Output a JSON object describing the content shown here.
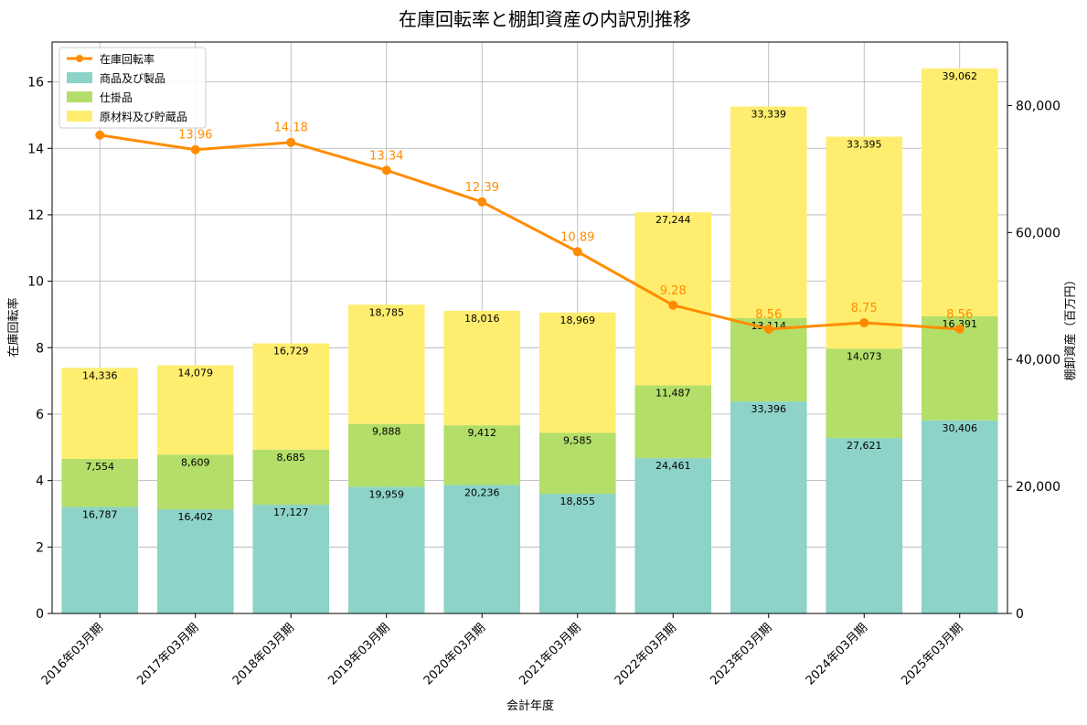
{
  "chart_data": {
    "type": "bar",
    "title": "在庫回転率と棚卸資産の内訳別推移",
    "xlabel": "会計年度",
    "ylabel_left": "在庫回転率",
    "ylabel_right": "棚卸資産（百万円）",
    "categories": [
      "2016年03月期",
      "2017年03月期",
      "2018年03月期",
      "2019年03月期",
      "2020年03月期",
      "2021年03月期",
      "2022年03月期",
      "2023年03月期",
      "2024年03月期",
      "2025年03月期"
    ],
    "series": [
      {
        "name": "商品及び製品",
        "kind": "bar",
        "axis": "right",
        "color": "#8dd3c7",
        "values": [
          16787,
          16402,
          17127,
          19959,
          20236,
          18855,
          24461,
          33396,
          27621,
          30406
        ],
        "labels": [
          "16,787",
          "16,402",
          "17,127",
          "19,959",
          "20,236",
          "18,855",
          "24,461",
          "33,396",
          "27,621",
          "30,406"
        ]
      },
      {
        "name": "仕掛品",
        "kind": "bar",
        "axis": "right",
        "color": "#b3de69",
        "values": [
          7554,
          8609,
          8685,
          9888,
          9412,
          9585,
          11487,
          13114,
          14073,
          16391
        ],
        "labels": [
          "7,554",
          "8,609",
          "8,685",
          "9,888",
          "9,412",
          "9,585",
          "11,487",
          "13,114",
          "14,073",
          "16,391"
        ]
      },
      {
        "name": "原材料及び貯蔵品",
        "kind": "bar",
        "axis": "right",
        "color": "#ffed6f",
        "values": [
          14336,
          14079,
          16729,
          18785,
          18016,
          18969,
          27244,
          33339,
          33395,
          39062
        ],
        "labels": [
          "14,336",
          "14,079",
          "16,729",
          "18,785",
          "18,016",
          "18,969",
          "27,244",
          "33,339",
          "33,395",
          "39,062"
        ]
      },
      {
        "name": "在庫回転率",
        "kind": "line",
        "axis": "left",
        "color": "#ff8c00",
        "values": [
          14.4,
          13.96,
          14.18,
          13.34,
          12.39,
          10.89,
          9.28,
          8.56,
          8.75,
          8.56
        ],
        "labels": [
          "",
          "13.96",
          "14.18",
          "13.34",
          "12.39",
          "10.89",
          "9.28",
          "8.56",
          "8.75",
          "8.56"
        ]
      }
    ],
    "y_left": {
      "range": [
        0,
        17.2
      ],
      "ticks": [
        "0",
        "2",
        "4",
        "6",
        "8",
        "10",
        "12",
        "14",
        "16"
      ]
    },
    "y_right": {
      "range": [
        0,
        90000
      ],
      "ticks": [
        "0",
        "20,000",
        "40,000",
        "60,000",
        "80,000"
      ]
    },
    "grid": true,
    "legend": "top-left"
  }
}
